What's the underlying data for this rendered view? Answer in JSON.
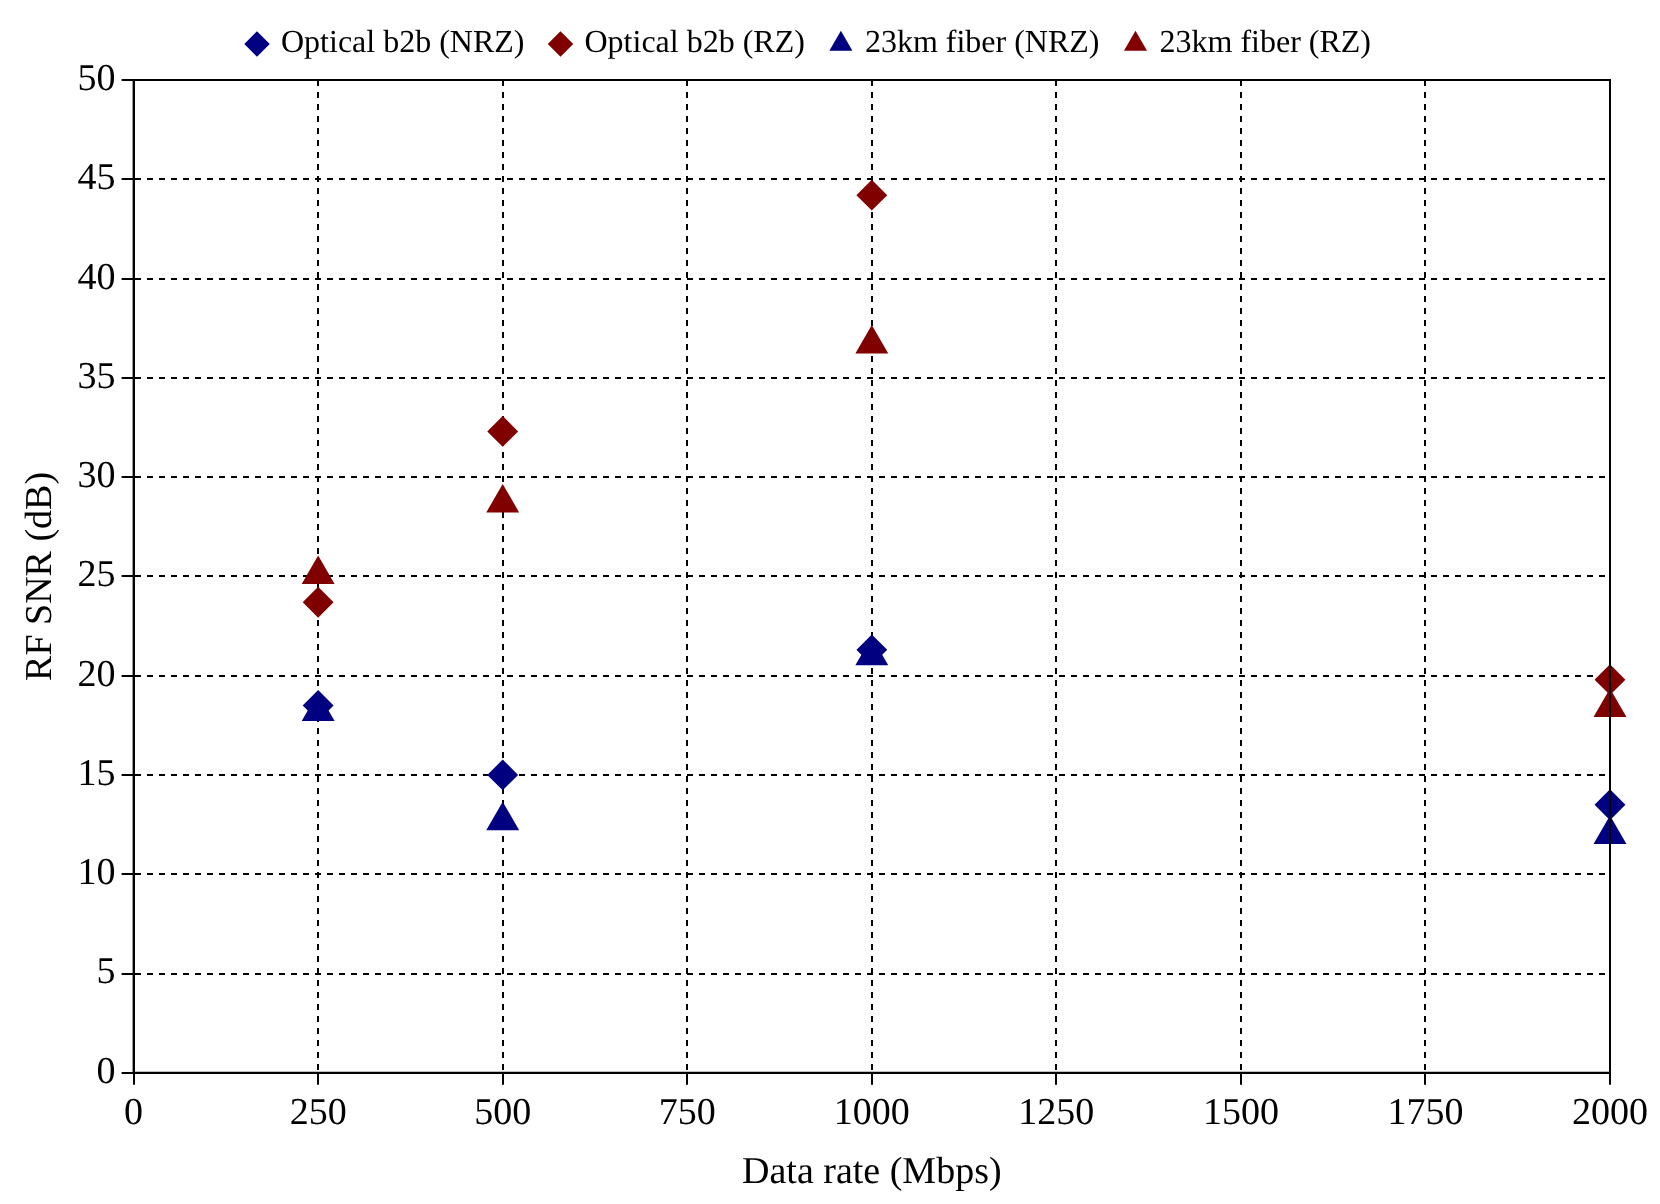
{
  "chart_data": {
    "type": "scatter",
    "xlabel": "Data rate (Mbps)",
    "ylabel": "RF SNR (dB)",
    "x": [
      250,
      500,
      1000,
      2000
    ],
    "series": [
      {
        "name": "Optical b2b (NRZ)",
        "color": "#000080",
        "marker": "diamond",
        "values": [
          18.5,
          15.0,
          21.3,
          13.5
        ]
      },
      {
        "name": "Optical b2b (RZ)",
        "color": "#800000",
        "marker": "diamond",
        "values": [
          23.7,
          32.3,
          44.2,
          19.8
        ]
      },
      {
        "name": "23km fiber (NRZ)",
        "color": "#000080",
        "marker": "triangle",
        "values": [
          18.2,
          12.7,
          21.0,
          12.0
        ]
      },
      {
        "name": "23km fiber (RZ)",
        "color": "#800000",
        "marker": "triangle",
        "values": [
          25.1,
          28.7,
          36.7,
          18.4
        ]
      }
    ],
    "xlim": [
      0,
      2000
    ],
    "xticks": [
      0,
      250,
      500,
      750,
      1000,
      1250,
      1500,
      1750,
      2000
    ],
    "ylim": [
      0,
      50
    ],
    "yticks": [
      0,
      5,
      10,
      15,
      20,
      25,
      30,
      35,
      40,
      45,
      50
    ],
    "grid": true,
    "legend": "top",
    "line_style": "dashed"
  }
}
